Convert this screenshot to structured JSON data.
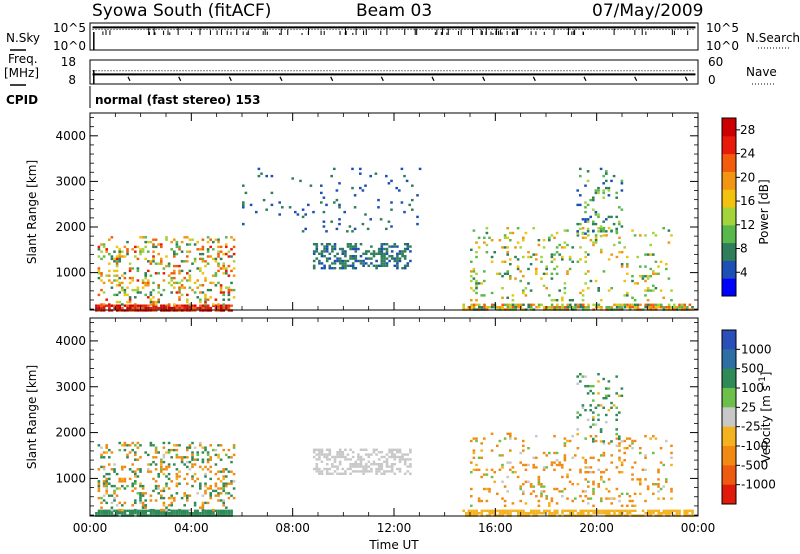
{
  "header": {
    "station": "Syowa South (fitACF)",
    "beam": "Beam 03",
    "date": "07/May/2009"
  },
  "colors": {
    "frame": "#000000",
    "scatter_blue": "#3050b8",
    "scatter_ground": "#2e8b57"
  },
  "chart_data": [
    {
      "type": "line",
      "name": "n-sky-n-search-panel",
      "labels": {
        "left": "N.Sky",
        "right": "N.Search"
      },
      "left_ticks": [
        "10^5",
        "10^0"
      ],
      "right_ticks": [
        "10^5",
        "10^0"
      ],
      "x": [
        "00:00",
        "24:00"
      ],
      "series": [
        {
          "values_log10": [
            4.2,
            4.2
          ]
        },
        {
          "values_log10": [
            4.0,
            4.0
          ]
        }
      ]
    },
    {
      "type": "line",
      "name": "freq-nave-panel",
      "labels": {
        "left_top": "Freq.",
        "left_bottom": "[MHz]",
        "right": "Nave"
      },
      "left_ticks": [
        18,
        8
      ],
      "right_ticks": [
        60,
        0
      ],
      "freq_mhz": 12,
      "nave": 33
    },
    {
      "type": "table",
      "name": "cpid-panel",
      "label": "CPID",
      "mode": "normal (fast stereo) 153"
    },
    {
      "type": "heatmap",
      "name": "power-panel",
      "xlabel": "Time UT",
      "ylabel": "Slant Range [km]",
      "x_ticks": [
        "00:00",
        "04:00",
        "08:00",
        "12:00",
        "16:00",
        "20:00",
        "00:00"
      ],
      "xlim_hours": [
        0,
        24
      ],
      "ylim_km": [
        180,
        4500
      ],
      "y_ticks": [
        1000,
        2000,
        3000,
        4000
      ],
      "colorbar": {
        "label": "Power [dB]",
        "ticks": [
          4,
          8,
          12,
          16,
          20,
          24,
          28
        ],
        "range": [
          0,
          30
        ],
        "colors": [
          "#0000ff",
          "#1e4fb4",
          "#2f7e5a",
          "#58b84c",
          "#a3d43b",
          "#f2c20e",
          "#f19512",
          "#f25c0c",
          "#e81a0a",
          "#cc0000"
        ]
      },
      "regions": [
        {
          "t": [
            0.2,
            5.6
          ],
          "r": [
            180,
            300
          ],
          "level": [
            22,
            30
          ],
          "density": 0.9
        },
        {
          "t": [
            0.3,
            5.7
          ],
          "r": [
            300,
            1800
          ],
          "level": [
            6,
            26
          ],
          "density": 0.25
        },
        {
          "t": [
            8.8,
            12.6
          ],
          "r": [
            1100,
            1650
          ],
          "level": [
            4,
            9
          ],
          "density": 0.5
        },
        {
          "t": [
            6.0,
            13.0
          ],
          "r": [
            1900,
            3300
          ],
          "level": [
            3,
            9
          ],
          "density": 0.05
        },
        {
          "t": [
            14.7,
            23.8
          ],
          "r": [
            180,
            320
          ],
          "level": [
            6,
            24
          ],
          "density": 0.75
        },
        {
          "t": [
            15.0,
            23.0
          ],
          "r": [
            400,
            2000
          ],
          "level": [
            6,
            20
          ],
          "density": 0.12
        },
        {
          "t": [
            19.2,
            21.0
          ],
          "r": [
            1800,
            3300
          ],
          "level": [
            4,
            14
          ],
          "density": 0.15
        }
      ]
    },
    {
      "type": "heatmap",
      "name": "velocity-panel",
      "xlabel": "Time UT",
      "ylabel": "Slant Range [km]",
      "x_ticks": [
        "00:00",
        "04:00",
        "08:00",
        "12:00",
        "16:00",
        "20:00",
        "00:00"
      ],
      "xlim_hours": [
        0,
        24
      ],
      "ylim_km": [
        180,
        4500
      ],
      "y_ticks": [
        1000,
        2000,
        3000,
        4000
      ],
      "colorbar": {
        "label": "Velocity [m s^-1]",
        "ticks": [
          "1000",
          "500",
          "100",
          "25",
          "-25",
          "-100",
          "-500",
          "-1000"
        ],
        "colors": [
          "#2a4fb8",
          "#2d6fa5",
          "#2e8b57",
          "#6cc04a",
          "#c8c8c8",
          "#f4b21e",
          "#f28a12",
          "#ee5a10",
          "#e01b0b"
        ]
      },
      "regions": [
        {
          "t": [
            0.2,
            5.6
          ],
          "r": [
            180,
            320
          ],
          "v": [
            100,
            500
          ],
          "density": 0.9
        },
        {
          "t": [
            0.3,
            5.7
          ],
          "r": [
            320,
            1800
          ],
          "v": [
            -500,
            500
          ],
          "density": 0.25
        },
        {
          "t": [
            8.8,
            12.6
          ],
          "r": [
            1100,
            1650
          ],
          "v": [
            -25,
            25
          ],
          "density": 0.5
        },
        {
          "t": [
            14.7,
            23.8
          ],
          "r": [
            180,
            320
          ],
          "v": [
            -100,
            -25
          ],
          "density": 0.75
        },
        {
          "t": [
            15.0,
            23.0
          ],
          "r": [
            400,
            2000
          ],
          "v": [
            -500,
            100
          ],
          "density": 0.12
        },
        {
          "t": [
            19.2,
            21.0
          ],
          "r": [
            1800,
            3300
          ],
          "v": [
            -100,
            500
          ],
          "density": 0.15
        }
      ]
    }
  ]
}
